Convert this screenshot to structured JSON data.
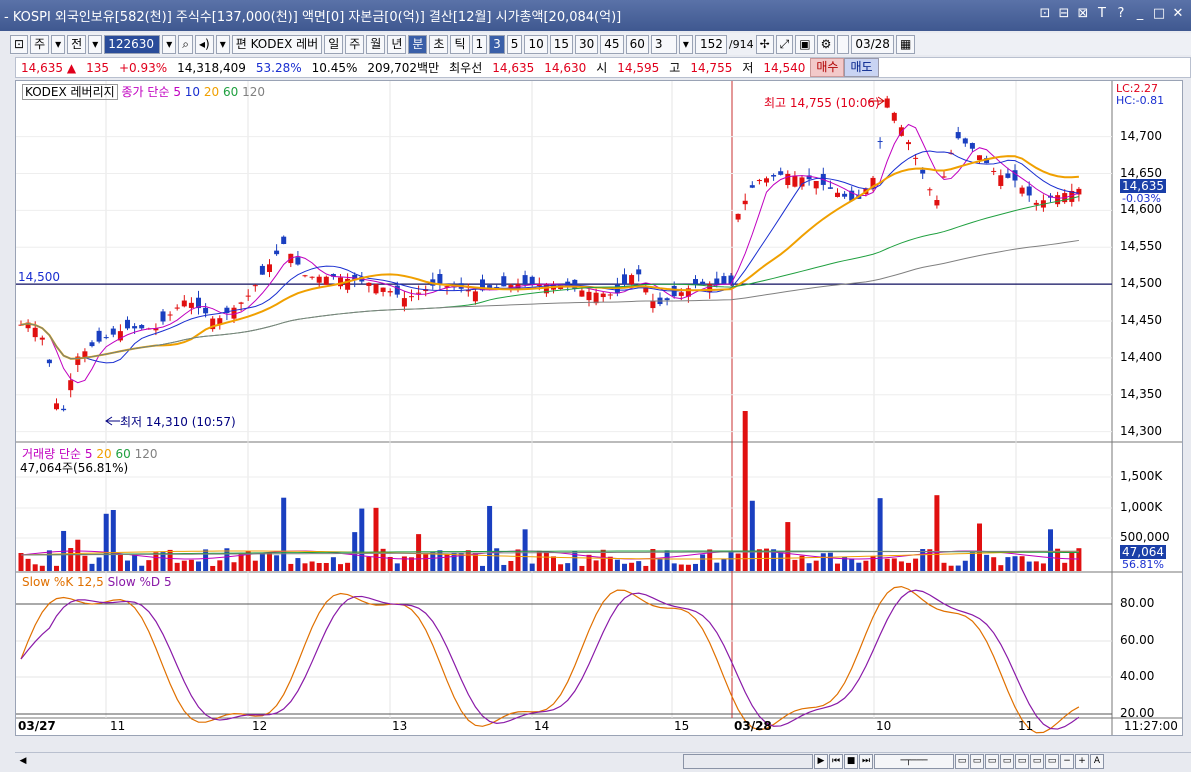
{
  "window": {
    "title": "- KOSPI 외국인보유[582(천)] 주식수[137,000(천)] 액면[0] 자본금[0(억)] 결산[12월] 시가총액[20,084(억)]",
    "buttons": [
      "⊡",
      "⊟",
      "⊠",
      "T",
      "?",
      "_",
      "□",
      "✕"
    ]
  },
  "toolbar": {
    "period_main": "주",
    "prev": "전",
    "code": "122630",
    "stock_label": "편 KODEX 레버",
    "periods": [
      "일",
      "주",
      "월",
      "년",
      "분",
      "초",
      "틱"
    ],
    "selected_period": "분",
    "minutes": [
      "1",
      "3",
      "5",
      "10",
      "15",
      "30",
      "45",
      "60"
    ],
    "selected_minute": "3",
    "minute_select": "3",
    "count": "152",
    "total": "/914",
    "date": "03/28"
  },
  "pricebar": {
    "price": "14,635",
    "arrow": "▲",
    "change": "135",
    "change_pct": "+0.93%",
    "volume": "14,318,409",
    "ratio1": "53.28%",
    "ratio2": "10.45%",
    "amount": "209,702백만",
    "priority_label": "최우선",
    "ask": "14,635",
    "bid": "14,630",
    "open_label": "시",
    "open": "14,595",
    "high_label": "고",
    "high": "14,755",
    "low_label": "저",
    "low": "14,540",
    "buy_label": "매수",
    "sell_label": "매도"
  },
  "price_panel": {
    "title": "KODEX 레버리지",
    "ma_label": "종가 단순",
    "ma_periods": [
      "5",
      "10",
      "20",
      "60",
      "120"
    ],
    "ma_colors": [
      "#c000c0",
      "#1a2fd0",
      "#f0a000",
      "#20a040",
      "#808080"
    ],
    "lc": "LC:2.27",
    "hc": "HC:-0.81",
    "hline": "14,500",
    "high_annot": "최고 14,755 (10:06)",
    "low_annot": "최저 14,310 (10:57)",
    "current_tag": "14,635",
    "current_pct": "-0.03%",
    "yticks": [
      "14,700",
      "14,650",
      "14,600",
      "14,550",
      "14,500",
      "14,450",
      "14,400",
      "14,350",
      "14,300"
    ]
  },
  "volume_panel": {
    "title": "거래량",
    "ma_label": "단순",
    "ma_periods": [
      "5",
      "20",
      "60",
      "120"
    ],
    "value": "47,064주(56.81%)",
    "yticks": [
      "1,500K",
      "1,000K",
      "500,000"
    ],
    "current_tag": "47,064",
    "current_pct": "56.81%"
  },
  "stoch_panel": {
    "title_k": "Slow %K 12,5",
    "title_d": "Slow %D 5",
    "yticks": [
      "80.00",
      "60.00",
      "40.00",
      "20.00"
    ]
  },
  "xaxis": {
    "labels": [
      "03/27",
      "11",
      "12",
      "13",
      "14",
      "15",
      "03/28",
      "10",
      "11"
    ],
    "time": "11:27:00"
  },
  "chart_data": {
    "type": "candlestick",
    "ylim": [
      14290,
      14770
    ],
    "hline": 14500,
    "high": 14755,
    "low": 14310,
    "current": 14635
  }
}
